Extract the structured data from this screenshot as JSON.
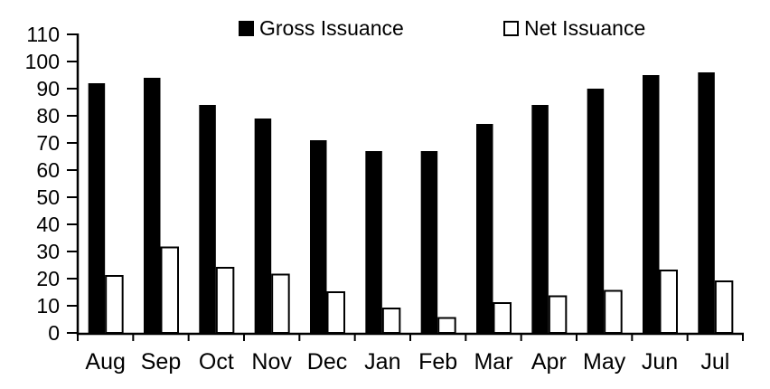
{
  "chart_data": {
    "type": "bar",
    "title": "",
    "xlabel": "",
    "ylabel": "",
    "categories": [
      "Aug",
      "Sep",
      "Oct",
      "Nov",
      "Dec",
      "Jan",
      "Feb",
      "Mar",
      "Apr",
      "May",
      "Jun",
      "Jul"
    ],
    "series": [
      {
        "name": "Gross Issuance",
        "values": [
          92,
          94,
          84,
          79,
          71,
          67,
          67,
          77,
          84,
          90,
          95,
          96
        ],
        "fill": "#000000",
        "stroke": "#000000"
      },
      {
        "name": "Net Issuance",
        "values": [
          21,
          31.5,
          24,
          21.5,
          15,
          9,
          5.5,
          11,
          13.5,
          15.5,
          23,
          19
        ],
        "fill": "#ffffff",
        "stroke": "#000000"
      }
    ],
    "ylim": [
      0,
      110
    ],
    "ytick_step": 10,
    "ytick_labels": [
      "0",
      "10",
      "20",
      "30",
      "40",
      "50",
      "60",
      "70",
      "80",
      "90",
      "100",
      "110"
    ],
    "grid": false,
    "legend_position": "top"
  },
  "colors": {
    "axis": "#000000",
    "text": "#000000",
    "background": "#ffffff"
  }
}
